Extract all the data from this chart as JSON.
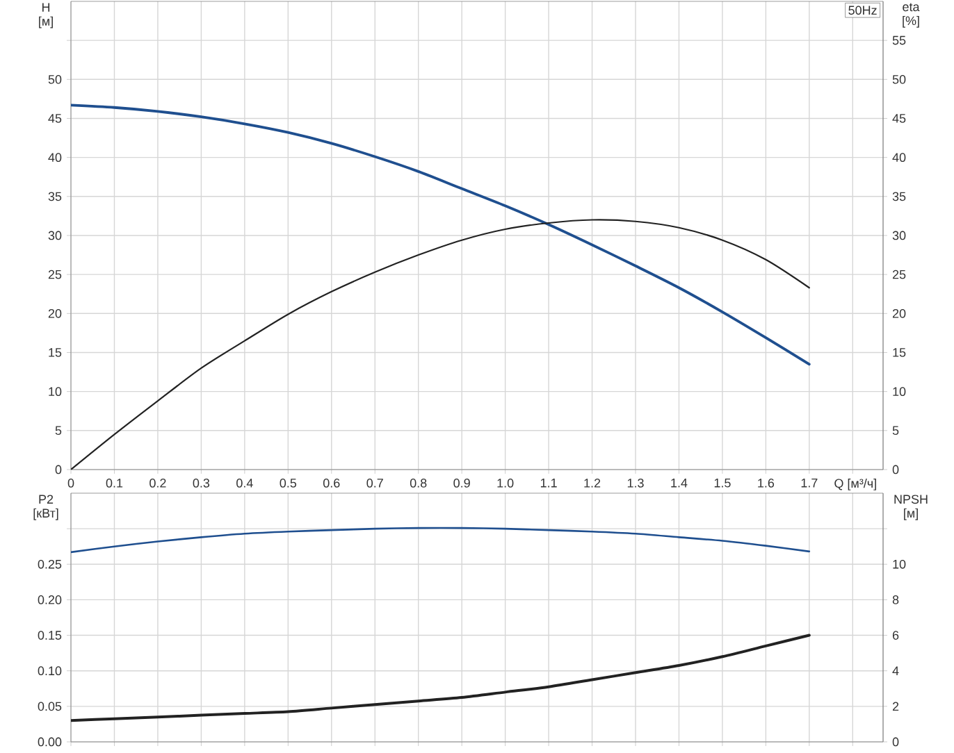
{
  "chart_data": [
    {
      "type": "line",
      "xlabel": "Q [м³/ч]",
      "ylabel": "H [м]",
      "y2label": "eta [%]",
      "annotations": [
        "50Hz"
      ],
      "x": [
        0,
        0.1,
        0.2,
        0.3,
        0.4,
        0.5,
        0.6,
        0.7,
        0.8,
        0.9,
        1.0,
        1.1,
        1.2,
        1.3,
        1.4,
        1.5,
        1.6,
        1.7
      ],
      "xlim": [
        0,
        1.87
      ],
      "xticks": [
        0,
        0.1,
        0.2,
        0.3,
        0.4,
        0.5,
        0.6,
        0.7,
        0.8,
        0.9,
        {
          "value": 1.0,
          "label": "1.0"
        },
        1.1,
        1.2,
        1.3,
        1.4,
        1.5,
        1.6,
        1.7,
        {
          "value": 1.8,
          "label": null
        }
      ],
      "ylim": [
        0,
        60
      ],
      "yticks": [
        0,
        5,
        10,
        15,
        20,
        25,
        30,
        35,
        40,
        45,
        50,
        {
          "value": 55,
          "label": null
        }
      ],
      "y2lim": [
        0,
        60
      ],
      "y2ticks": [
        0,
        5,
        10,
        15,
        20,
        25,
        30,
        35,
        40,
        45,
        50,
        55
      ],
      "grid": true,
      "series": [
        {
          "color": "#1f4f8f",
          "values": [
            46.7,
            46.4,
            45.9,
            45.2,
            44.3,
            43.2,
            41.8,
            40.1,
            38.2,
            36.0,
            33.8,
            31.4,
            28.8,
            26.1,
            23.3,
            20.2,
            16.9,
            13.5
          ]
        },
        {
          "color": "#222222",
          "axis": "y2",
          "values": [
            0,
            4.5,
            8.8,
            13.0,
            16.5,
            19.9,
            22.8,
            25.3,
            27.5,
            29.4,
            30.8,
            31.6,
            32.0,
            31.8,
            31.0,
            29.4,
            26.9,
            23.3
          ]
        }
      ]
    },
    {
      "type": "line",
      "ylabel": "P2 [кВт]",
      "y2label": "NPSH [м]",
      "x": [
        0,
        0.1,
        0.2,
        0.3,
        0.4,
        0.5,
        0.6,
        0.7,
        0.8,
        0.9,
        1.0,
        1.1,
        1.2,
        1.3,
        1.4,
        1.5,
        1.6,
        1.7
      ],
      "xlim": [
        0,
        1.87
      ],
      "xticks": [
        0,
        0.1,
        0.2,
        0.3,
        0.4,
        0.5,
        0.6,
        0.7,
        0.8,
        0.9,
        1.0,
        1.1,
        1.2,
        1.3,
        1.4,
        1.5,
        1.6,
        1.7,
        1.8
      ],
      "ylim": [
        0,
        0.35
      ],
      "yticks": [
        {
          "value": 0,
          "label": "0.00"
        },
        {
          "value": 0.05,
          "label": "0.05"
        },
        {
          "value": 0.1,
          "label": "0.10"
        },
        {
          "value": 0.15,
          "label": "0.15"
        },
        {
          "value": 0.2,
          "label": "0.20"
        },
        {
          "value": 0.25,
          "label": "0.25"
        },
        {
          "value": 0.3,
          "label": null
        }
      ],
      "y2lim": [
        0,
        14
      ],
      "y2ticks": [
        0,
        2,
        4,
        6,
        8,
        10,
        {
          "value": 12,
          "label": null
        }
      ],
      "grid": true,
      "tick_labels": "y",
      "series": [
        {
          "color": "#1f4f8f",
          "values": [
            0.267,
            0.275,
            0.282,
            0.288,
            0.293,
            0.296,
            0.298,
            0.3,
            0.301,
            0.301,
            0.3,
            0.298,
            0.296,
            0.293,
            0.288,
            0.283,
            0.276,
            0.268
          ]
        },
        {
          "color": "#222222",
          "axis": "y2",
          "values": [
            1.2,
            1.3,
            1.4,
            1.5,
            1.6,
            1.7,
            1.9,
            2.1,
            2.3,
            2.5,
            2.8,
            3.1,
            3.5,
            3.9,
            4.3,
            4.8,
            5.4,
            6.0
          ]
        }
      ]
    }
  ]
}
